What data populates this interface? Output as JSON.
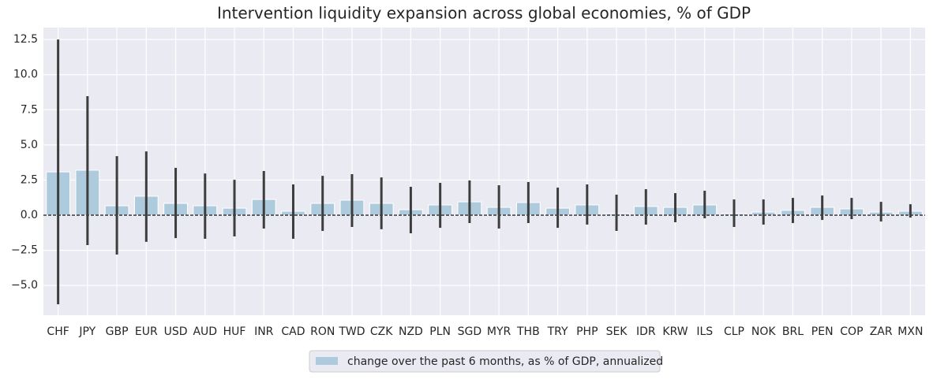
{
  "chart_data": {
    "type": "bar",
    "title": "Intervention liquidity expansion across global economies, % of GDP",
    "categories": [
      "CHF",
      "JPY",
      "GBP",
      "EUR",
      "USD",
      "AUD",
      "HUF",
      "INR",
      "CAD",
      "RON",
      "TWD",
      "CZK",
      "NZD",
      "PLN",
      "SGD",
      "MYR",
      "THB",
      "TRY",
      "PHP",
      "SEK",
      "IDR",
      "KRW",
      "ILS",
      "CLP",
      "NOK",
      "BRL",
      "PEN",
      "COP",
      "ZAR",
      "MXN"
    ],
    "series": [
      {
        "name": "change over the past 6 months, as % of GDP, annualized",
        "color": "#adcbdc",
        "values": [
          3.08,
          3.2,
          0.67,
          1.35,
          0.84,
          0.67,
          0.5,
          1.12,
          0.28,
          0.84,
          1.07,
          0.84,
          0.39,
          0.73,
          0.95,
          0.56,
          0.9,
          0.5,
          0.73,
          0.11,
          0.62,
          0.56,
          0.73,
          0.11,
          0.22,
          0.34,
          0.56,
          0.45,
          0.22,
          0.28
        ],
        "error_low": [
          -6.34,
          -2.13,
          -2.8,
          -1.9,
          -1.63,
          -1.68,
          -1.51,
          -0.95,
          -1.68,
          -1.12,
          -0.84,
          -1.0,
          -1.29,
          -0.9,
          -0.56,
          -0.95,
          -0.56,
          -0.9,
          -0.67,
          -1.12,
          -0.67,
          -0.5,
          -0.22,
          -0.84,
          -0.67,
          -0.56,
          -0.34,
          -0.28,
          -0.45,
          -0.17
        ],
        "error_high": [
          12.5,
          8.47,
          4.2,
          4.54,
          3.37,
          2.97,
          2.52,
          3.14,
          2.19,
          2.8,
          2.92,
          2.69,
          2.02,
          2.3,
          2.47,
          2.13,
          2.36,
          1.96,
          2.19,
          1.46,
          1.85,
          1.57,
          1.74,
          1.12,
          1.12,
          1.23,
          1.4,
          1.23,
          0.95,
          0.78
        ]
      }
    ],
    "error_color": "#3d3d3d",
    "ylim": [
      -7.12,
      13.35
    ],
    "yticks": [
      {
        "value": -5,
        "label": "−5.0"
      },
      {
        "value": -2.5,
        "label": "−2.5"
      },
      {
        "value": 0,
        "label": "0.0"
      },
      2.5,
      {
        "value": 5,
        "label": "5.0"
      },
      7.5,
      {
        "value": 10,
        "label": "10.0"
      },
      12.5
    ],
    "grid": true,
    "zero_line": true,
    "legend": "bottom"
  }
}
